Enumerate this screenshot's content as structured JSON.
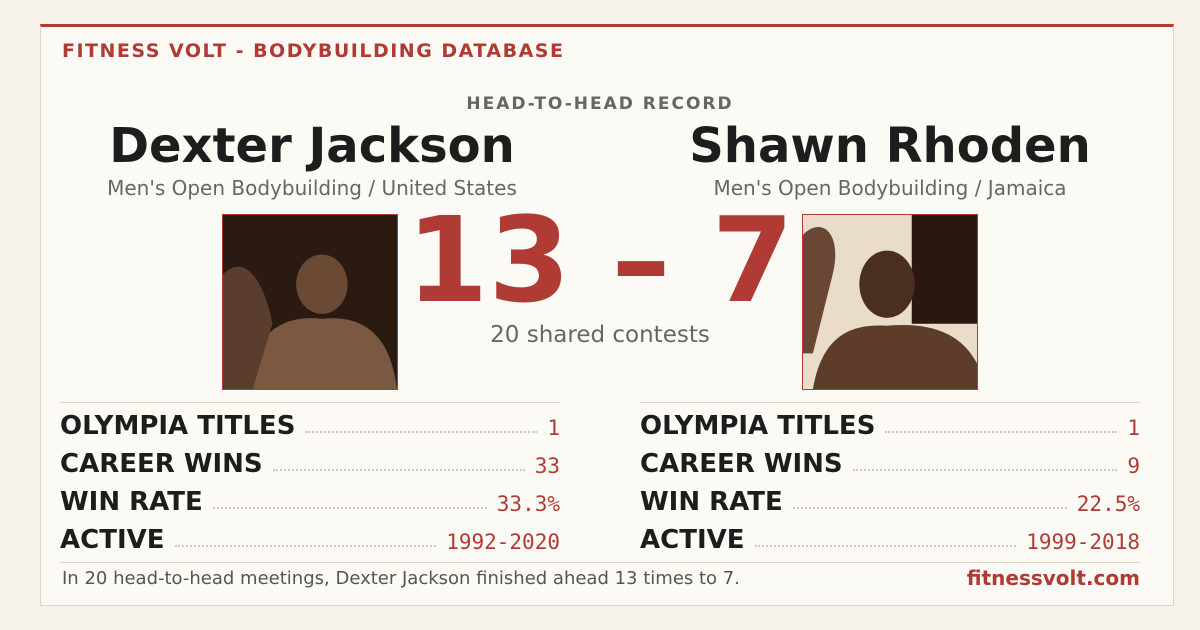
{
  "header": {
    "brand": "FITNESS VOLT - BODYBUILDING DATABASE"
  },
  "matchup": {
    "label": "HEAD-TO-HEAD RECORD",
    "score": {
      "left": 13,
      "separator": "–",
      "right": 7
    },
    "shared": "20 shared contests"
  },
  "athletes": [
    {
      "name": "Dexter Jackson",
      "division": "Men's Open Bodybuilding / United States",
      "stats": [
        {
          "label": "OLYMPIA TITLES",
          "value": "1"
        },
        {
          "label": "CAREER WINS",
          "value": "33"
        },
        {
          "label": "WIN RATE",
          "value": "33.3%"
        },
        {
          "label": "ACTIVE",
          "value": "1992-2020"
        }
      ]
    },
    {
      "name": "Shawn Rhoden",
      "division": "Men's Open Bodybuilding / Jamaica",
      "stats": [
        {
          "label": "OLYMPIA TITLES",
          "value": "1"
        },
        {
          "label": "CAREER WINS",
          "value": "9"
        },
        {
          "label": "WIN RATE",
          "value": "22.5%"
        },
        {
          "label": "ACTIVE",
          "value": "1999-2018"
        }
      ]
    }
  ],
  "footer": {
    "summary": "In 20 head-to-head meetings, Dexter Jackson finished ahead 13 times to 7.",
    "site": "fitnessvolt.com"
  }
}
